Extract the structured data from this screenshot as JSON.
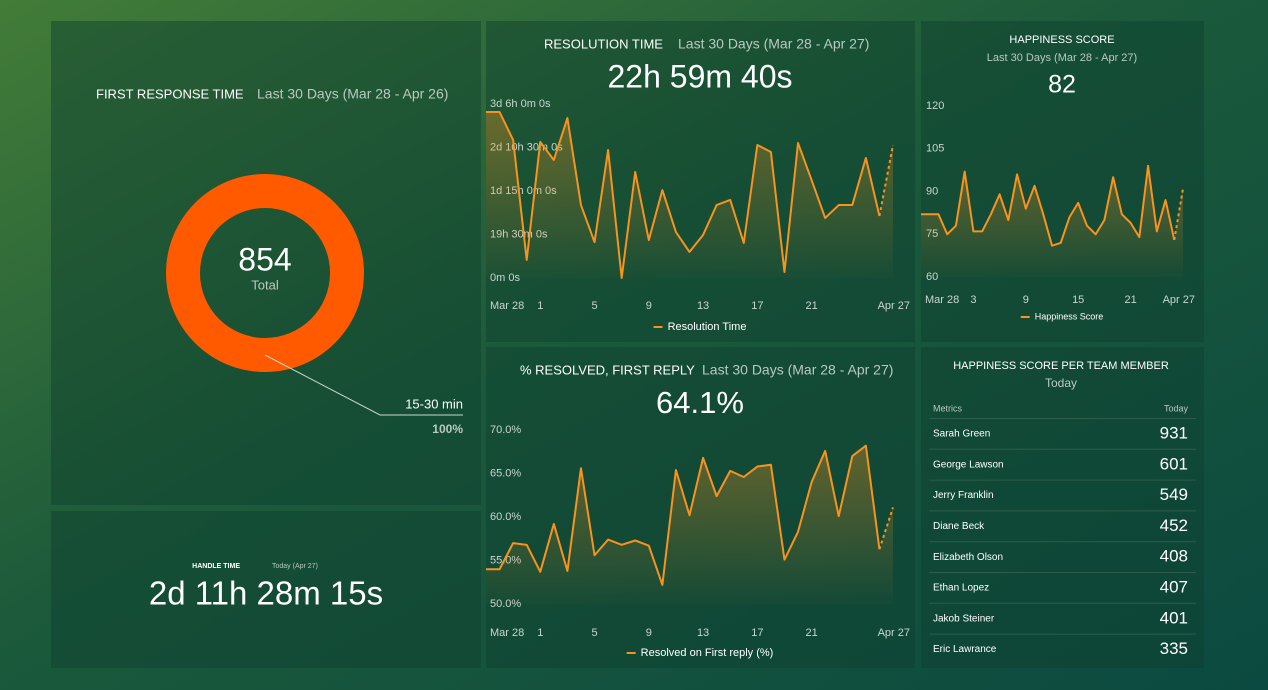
{
  "chart_data": [
    {
      "type": "pie",
      "title": "FIRST RESPONSE TIME",
      "subtitle": "Last 30 Days (Mar 28 - Apr 26)",
      "center_value": "854",
      "center_label": "Total",
      "categories": [
        "15-30 min"
      ],
      "values": [
        100
      ],
      "value_labels": [
        "100%"
      ],
      "colors": [
        "#ff5a00"
      ]
    },
    {
      "type": "line",
      "title": "RESOLUTION TIME",
      "subtitle": "Last 30 Days (Mar 28 - Apr 27)",
      "headline": "22h 59m 40s",
      "categories": [
        "Mar 28",
        null,
        null,
        null,
        "1",
        null,
        null,
        null,
        "5",
        null,
        null,
        null,
        "9",
        null,
        null,
        null,
        "13",
        null,
        null,
        null,
        "17",
        null,
        null,
        null,
        "21",
        null,
        null,
        null,
        null,
        null,
        "Apr 27"
      ],
      "series": [
        {
          "name": "Resolution Time",
          "color": "#f7931e",
          "values": [
            74.4,
            74.4,
            61.9,
            8.1,
            61,
            52.9,
            71.7,
            32.7,
            16.1,
            57.4,
            0,
            47.5,
            17,
            39.4,
            20.6,
            11.7,
            19.3,
            32.7,
            35,
            15.7,
            59.6,
            56.5,
            2.7,
            60.5,
            43.9,
            26.9,
            32.7,
            32.7,
            53.8,
            27.8,
            59.6
          ]
        }
      ],
      "ylim": [
        0,
        78
      ],
      "yticks": [
        {
          "value": 0,
          "label": "0m 0s"
        },
        {
          "value": 19.5,
          "label": "19h 30m 0s"
        },
        {
          "value": 39,
          "label": "1d 15h 0m 0s"
        },
        {
          "value": 58.5,
          "label": "2d 10h 30m 0s"
        },
        {
          "value": 78,
          "label": "3d 6h 0m 0s"
        }
      ],
      "grid": false,
      "last_segment_dashed": true
    },
    {
      "type": "line",
      "title": "HAPPINESS SCORE",
      "subtitle": "Last 30 Days (Mar 28 - Apr 27)",
      "headline": "82",
      "categories": [
        "Mar 28",
        null,
        null,
        null,
        null,
        null,
        "3",
        null,
        null,
        null,
        null,
        null,
        "9",
        null,
        null,
        null,
        null,
        null,
        "15",
        null,
        null,
        null,
        null,
        null,
        "21",
        null,
        null,
        null,
        null,
        null,
        "Apr 27"
      ],
      "series": [
        {
          "name": "Happiness Score",
          "color": "#f7931e",
          "values": [
            82,
            82,
            82,
            75,
            78,
            97,
            76,
            76,
            82,
            89,
            80,
            96,
            84,
            92,
            82,
            71,
            72,
            81,
            86,
            78,
            75,
            80,
            95,
            82,
            79,
            74,
            99,
            76,
            87,
            73,
            91
          ]
        }
      ],
      "ylim": [
        60,
        120
      ],
      "yticks": [
        60,
        75,
        90,
        105,
        120
      ],
      "grid": false,
      "last_segment_dashed": true
    },
    {
      "type": "line",
      "title": "% RESOLVED, FIRST REPLY",
      "subtitle": "Last 30 Days (Mar 28 - Apr 27)",
      "headline": "64.1%",
      "categories": [
        "Mar 28",
        null,
        null,
        null,
        "1",
        null,
        null,
        null,
        "5",
        null,
        null,
        null,
        "9",
        null,
        null,
        null,
        "13",
        null,
        null,
        null,
        "17",
        null,
        null,
        null,
        "21",
        null,
        null,
        null,
        null,
        null,
        "Apr 27"
      ],
      "series": [
        {
          "name": "Resolved on First reply (%)",
          "color": "#f7931e",
          "values": [
            54,
            54,
            57,
            56.8,
            53.7,
            59.2,
            53.8,
            65.6,
            55.6,
            57.4,
            56.8,
            57.3,
            56.7,
            52.2,
            65.4,
            60.2,
            66.8,
            62.4,
            65.3,
            64.6,
            65.8,
            66,
            55.1,
            58.3,
            64,
            67.6,
            60.1,
            67,
            68.2,
            56.3,
            61.1
          ]
        }
      ],
      "ylim": [
        50,
        70
      ],
      "yticks": [
        {
          "value": 50,
          "label": "50.0%"
        },
        {
          "value": 55,
          "label": "55.0%"
        },
        {
          "value": 60,
          "label": "60.0%"
        },
        {
          "value": 65,
          "label": "65.0%"
        },
        {
          "value": 70,
          "label": "70.0%"
        }
      ],
      "grid": false,
      "last_segment_dashed": true
    }
  ],
  "kpi": {
    "title": "HANDLE TIME",
    "subtitle": "Today (Apr 27)",
    "value": "2d 11h 28m 15s"
  },
  "table": {
    "title": "HAPPINESS SCORE PER TEAM MEMBER",
    "subtitle": "Today",
    "columns": [
      "Metrics",
      "Today"
    ],
    "rows": [
      [
        "Sarah Green",
        931
      ],
      [
        "George Lawson",
        601
      ],
      [
        "Jerry Franklin",
        549
      ],
      [
        "Diane Beck",
        452
      ],
      [
        "Elizabeth Olson",
        408
      ],
      [
        "Ethan Lopez",
        407
      ],
      [
        "Jakob Steiner",
        401
      ],
      [
        "Eric Lawrance",
        335
      ]
    ]
  }
}
